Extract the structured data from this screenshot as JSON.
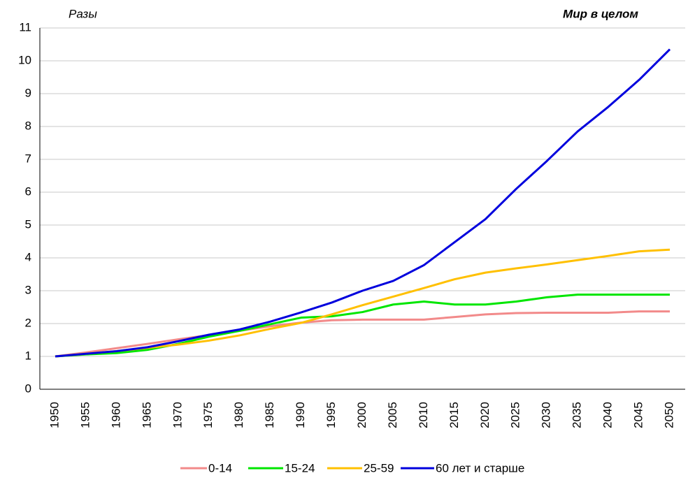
{
  "chart_data": {
    "type": "line",
    "y_label": "Разы",
    "title": "Мир в целом",
    "categories": [
      "1950",
      "1955",
      "1960",
      "1965",
      "1970",
      "1975",
      "1980",
      "1985",
      "1990",
      "1995",
      "2000",
      "2005",
      "2010",
      "2015",
      "2020",
      "2025",
      "2030",
      "2035",
      "2040",
      "2045",
      "2050"
    ],
    "series": [
      {
        "name": "0-14",
        "color": "#f28a8a",
        "values": [
          1.0,
          1.12,
          1.25,
          1.38,
          1.52,
          1.65,
          1.78,
          1.92,
          2.03,
          2.1,
          2.12,
          2.12,
          2.12,
          2.2,
          2.28,
          2.32,
          2.33,
          2.33,
          2.33,
          2.37,
          2.37
        ]
      },
      {
        "name": "15-24",
        "color": "#00e600",
        "values": [
          1.0,
          1.06,
          1.1,
          1.2,
          1.38,
          1.6,
          1.78,
          1.98,
          2.18,
          2.22,
          2.35,
          2.58,
          2.67,
          2.58,
          2.58,
          2.67,
          2.8,
          2.88,
          2.88,
          2.88,
          2.88
        ]
      },
      {
        "name": "25-59",
        "color": "#ffc000",
        "values": [
          1.0,
          1.08,
          1.16,
          1.26,
          1.36,
          1.48,
          1.64,
          1.84,
          2.02,
          2.28,
          2.56,
          2.82,
          3.08,
          3.35,
          3.55,
          3.68,
          3.8,
          3.93,
          4.06,
          4.2,
          4.25
        ]
      },
      {
        "name": "60 лет и старше",
        "color": "#0000dd",
        "values": [
          1.0,
          1.08,
          1.16,
          1.28,
          1.46,
          1.66,
          1.82,
          2.06,
          2.34,
          2.64,
          3.0,
          3.3,
          3.78,
          4.48,
          5.18,
          6.1,
          6.95,
          7.85,
          8.6,
          9.42,
          10.35
        ]
      }
    ],
    "ylim": [
      0,
      11
    ],
    "yticks": [
      0,
      1,
      2,
      3,
      4,
      5,
      6,
      7,
      8,
      9,
      10,
      11
    ],
    "grid": true,
    "legend": "bottom"
  }
}
